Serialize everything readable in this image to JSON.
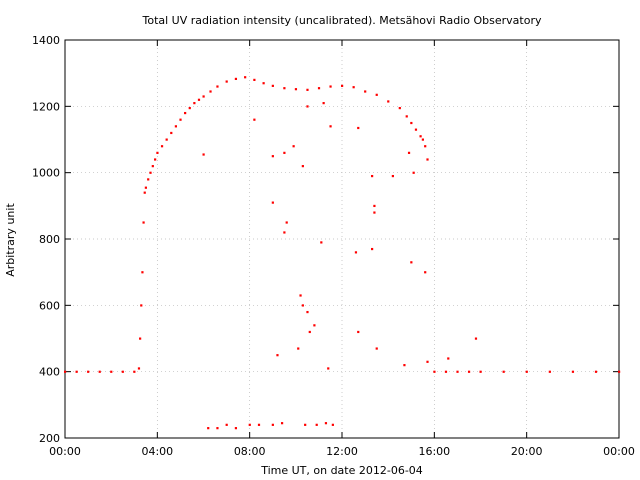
{
  "chart_data": {
    "type": "scatter",
    "title": "Total UV radiation intensity (uncalibrated). Metsähovi Radio Observatory",
    "xlabel": "Time UT, on date 2012-06-04",
    "ylabel": "Arbitrary unit",
    "xlim": [
      0,
      24
    ],
    "ylim": [
      200,
      1400
    ],
    "x_ticks": [
      0,
      4,
      8,
      12,
      16,
      20,
      24
    ],
    "x_tick_labels": [
      "00:00",
      "04:00",
      "08:00",
      "12:00",
      "16:00",
      "20:00",
      "00:00"
    ],
    "y_ticks": [
      200,
      400,
      600,
      800,
      1000,
      1200,
      1400
    ],
    "y_tick_labels": [
      "200",
      "400",
      "600",
      "800",
      "1000",
      "1200",
      "1400"
    ],
    "grid": true,
    "marker_color": "#ff0000",
    "series": [
      {
        "x": [
          0.0,
          0.5,
          1.0,
          1.5,
          2.0,
          2.5,
          3.0,
          3.2,
          3.25,
          3.3,
          3.35,
          3.4,
          3.45,
          3.5,
          3.6,
          3.7,
          3.8,
          3.9,
          4.0,
          4.2,
          4.4,
          4.6,
          4.8,
          5.0,
          5.2,
          5.4,
          5.6,
          5.8,
          6.0,
          6.3,
          6.6,
          7.0,
          7.4,
          7.8,
          8.2,
          8.6,
          9.0,
          9.5,
          10.0,
          10.5,
          11.0,
          11.5,
          12.0,
          12.5,
          13.0,
          13.5,
          14.0,
          14.5,
          14.8,
          15.0,
          15.2,
          15.4,
          15.5,
          15.6,
          15.7,
          16.0,
          16.5,
          17.0,
          17.5,
          18.0,
          19.0,
          20.0,
          21.0,
          22.0,
          23.0,
          24.0,
          6.0,
          8.2,
          9.0,
          9.5,
          9.9,
          10.3,
          10.5,
          11.2,
          11.5,
          12.7,
          13.3,
          13.4,
          14.2,
          14.9,
          15.1,
          9.0,
          9.6,
          9.5,
          10.2,
          10.3,
          10.5,
          11.1,
          12.6,
          13.3,
          13.4,
          15.0,
          15.6,
          9.2,
          10.1,
          10.6,
          10.8,
          11.4,
          12.7,
          13.5,
          14.7,
          15.7,
          16.6,
          17.8,
          6.2,
          6.6,
          7.0,
          7.4,
          8.0,
          8.4,
          9.0,
          9.4,
          10.4,
          10.9,
          11.3,
          11.6
        ],
        "y": [
          400,
          400,
          400,
          400,
          400,
          400,
          400,
          410,
          500,
          600,
          700,
          850,
          940,
          955,
          980,
          1000,
          1020,
          1040,
          1060,
          1080,
          1100,
          1120,
          1140,
          1160,
          1180,
          1195,
          1210,
          1220,
          1230,
          1245,
          1260,
          1275,
          1283,
          1288,
          1280,
          1270,
          1262,
          1255,
          1252,
          1250,
          1255,
          1260,
          1262,
          1258,
          1245,
          1235,
          1215,
          1195,
          1170,
          1150,
          1130,
          1110,
          1100,
          1080,
          1040,
          400,
          400,
          400,
          400,
          400,
          400,
          400,
          400,
          400,
          400,
          400,
          1055,
          1160,
          1050,
          1060,
          1080,
          1020,
          1200,
          1210,
          1140,
          1135,
          990,
          900,
          990,
          1060,
          1000,
          910,
          850,
          820,
          630,
          600,
          580,
          790,
          760,
          770,
          880,
          730,
          700,
          450,
          470,
          520,
          540,
          410,
          520,
          470,
          420,
          430,
          440,
          500,
          230,
          230,
          240,
          230,
          240,
          240,
          240,
          245,
          240,
          240,
          245,
          240
        ]
      }
    ]
  }
}
